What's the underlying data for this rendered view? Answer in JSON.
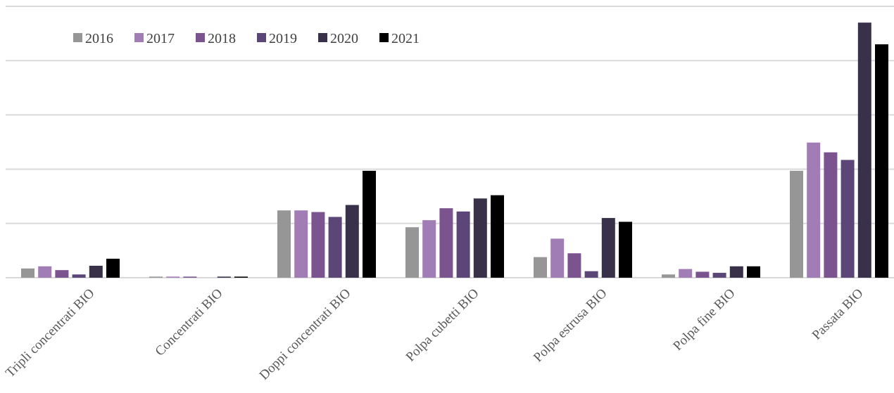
{
  "chart_data": {
    "type": "bar",
    "title": "",
    "xlabel": "",
    "ylabel": "",
    "categories": [
      "Tripli concentrati BIO",
      "Concentrati BIO",
      "Doppi concentrati BIO",
      "Polpa cubetti BIO",
      "Polpa estrusa BIO",
      "Polpa fine BIO",
      "Passata BIO"
    ],
    "series": [
      {
        "name": "2016",
        "color": "#969696",
        "values": [
          17,
          2,
          124,
          93,
          38,
          6,
          197
        ]
      },
      {
        "name": "2017",
        "color": "#a17db5",
        "values": [
          21,
          2,
          124,
          106,
          72,
          16,
          249
        ]
      },
      {
        "name": "2018",
        "color": "#7b548f",
        "values": [
          14,
          2,
          121,
          128,
          45,
          11,
          231
        ]
      },
      {
        "name": "2019",
        "color": "#5b4677",
        "values": [
          6,
          0,
          112,
          122,
          12,
          9,
          217
        ]
      },
      {
        "name": "2020",
        "color": "#39304a",
        "values": [
          22,
          2,
          134,
          146,
          110,
          21,
          470
        ]
      },
      {
        "name": "2021",
        "color": "#000000",
        "values": [
          35,
          2,
          197,
          152,
          103,
          21,
          430
        ]
      }
    ],
    "ylim": [
      0,
      500
    ],
    "yticks": [
      0,
      100,
      200,
      300,
      400,
      500
    ],
    "grid": true,
    "legend_position": "top-left"
  }
}
